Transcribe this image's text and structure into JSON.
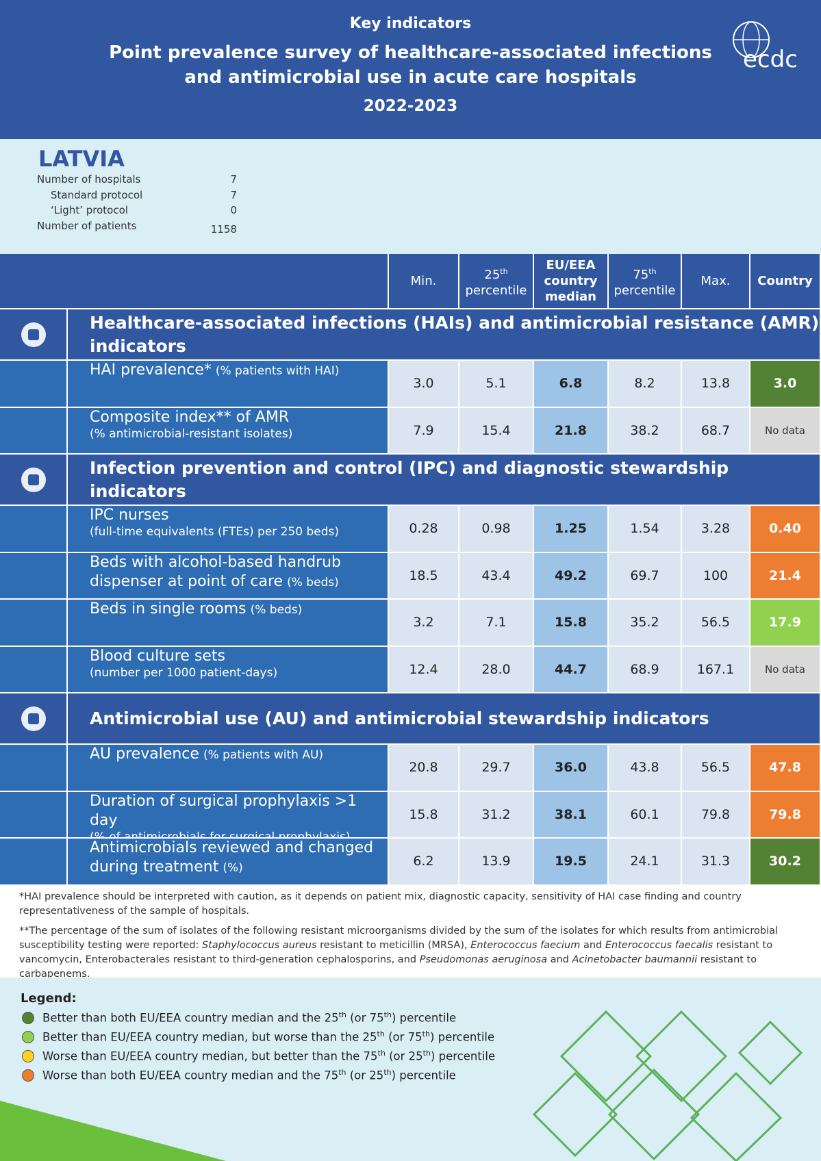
{
  "header": {
    "kicker": "Key indicators",
    "title": [
      "Point prevalence survey of healthcare-associated infections",
      "and antimicrobial use in acute care hospitals"
    ],
    "period": "2022-2023",
    "logo": "ecdc"
  },
  "country": "LATVIA",
  "summary": [
    {
      "label": "Number of hospitals",
      "value": "7"
    },
    {
      "label": "Standard protocol",
      "value": "7"
    },
    {
      "label": "‘Light’ protocol",
      "value": "0"
    },
    {
      "label": "Number of patients",
      "value": "1158"
    }
  ],
  "table": {
    "columns": [
      "Min.",
      [
        "25",
        "th",
        "percentile"
      ],
      "EU/EEA country median",
      [
        "75",
        "th",
        "percentile"
      ],
      "Max.",
      "Country"
    ],
    "sections": [
      {
        "title": "Healthcare-associated infections (HAIs) and antimicrobial resistance (AMR) indicators",
        "rows": [
          {
            "label": [
              {
                "text": "HAI prevalence*",
                "note": "(% patients with HAI)"
              }
            ],
            "values": [
              "3.0",
              "5.1",
              "6.8",
              "8.2",
              "13.8",
              "3.0"
            ],
            "color": "#548235"
          },
          {
            "label": [
              {
                "text": "Composite index** of AMR"
              },
              {
                "note": "(% antimicrobial-resistant isolates)"
              }
            ],
            "values": [
              "7.9",
              "15.4",
              "21.8",
              "38.2",
              "68.7",
              "No data"
            ],
            "color": "#d9d9d9"
          }
        ]
      },
      {
        "title": "Infection prevention and control (IPC) and diagnostic stewardship indicators",
        "rows": [
          {
            "label": [
              {
                "text": "IPC nurses"
              },
              {
                "note": "(full-time equivalents (FTEs) per 250 beds)"
              }
            ],
            "values": [
              "0.28",
              "0.98",
              "1.25",
              "1.54",
              "3.28",
              "0.40"
            ],
            "color": "#ed7d31"
          },
          {
            "label": [
              {
                "text": "Beds with alcohol-based handrub"
              },
              {
                "text": "dispenser at point of care",
                "note": "(% beds)"
              }
            ],
            "values": [
              "18.5",
              "43.4",
              "49.2",
              "69.7",
              "100",
              "21.4"
            ],
            "color": "#ed7d31"
          },
          {
            "label": [
              {
                "text": "Beds in single rooms",
                "note": "(% beds)"
              }
            ],
            "values": [
              "3.2",
              "7.1",
              "15.8",
              "35.2",
              "56.5",
              "17.9"
            ],
            "color": "#92d050"
          },
          {
            "label": [
              {
                "text": "Blood culture sets"
              },
              {
                "note": "(number per 1000 patient-days)"
              }
            ],
            "values": [
              "12.4",
              "28.0",
              "44.7",
              "68.9",
              "167.1",
              "No data"
            ],
            "color": "#d9d9d9"
          }
        ]
      },
      {
        "title": "Antimicrobial use (AU) and antimicrobial stewardship indicators",
        "rows": [
          {
            "label": [
              {
                "text": "AU prevalence",
                "note": "(% patients with AU)"
              }
            ],
            "values": [
              "20.8",
              "29.7",
              "36.0",
              "43.8",
              "56.5",
              "47.8"
            ],
            "color": "#ed7d31"
          },
          {
            "label": [
              {
                "text": "Duration of surgical prophylaxis >1 day"
              },
              {
                "note": "(% of antimicrobials for surgical prophylaxis)"
              }
            ],
            "values": [
              "15.8",
              "31.2",
              "38.1",
              "60.1",
              "79.8",
              "79.8"
            ],
            "color": "#ed7d31"
          },
          {
            "label": [
              {
                "text": "Antimicrobials reviewed and changed"
              },
              {
                "text": "during treatment",
                "note": "(%)"
              }
            ],
            "values": [
              "6.2",
              "13.9",
              "19.5",
              "24.1",
              "31.3",
              "30.2"
            ],
            "color": "#548235"
          }
        ]
      }
    ]
  },
  "footnotes": [
    [
      "*HAI prevalence should be interpreted with caution, as it depends on patient mix, diagnostic capacity, sensitivity of HAI case finding and country representativeness of the sample of hospitals."
    ],
    [
      "**The percentage of the sum of isolates of the following resistant microorganisms divided by the sum of the isolates for which results from antimicrobial susceptibility testing were reported: ",
      "Staphylococcus aureus",
      " resistant to meticillin (MRSA), ",
      "Enterococcus faecium",
      " and ",
      "Enterococcus faecalis",
      " resistant to vancomycin, Enterobacterales resistant to third-generation cephalosporins, and ",
      "Pseudomonas aeruginosa",
      " and ",
      "Acinetobacter baumannii",
      " resistant to carbapenems."
    ]
  ],
  "legend": {
    "title": "Legend:",
    "items": [
      {
        "color": "#548235",
        "parts": [
          "Better than both EU/EEA country median and the 25",
          "th",
          " (or 75",
          "th",
          ") percentile"
        ]
      },
      {
        "color": "#92d050",
        "parts": [
          "Better than EU/EEA country median, but worse than the 25",
          "th",
          " (or 75",
          "th",
          ") percentile"
        ]
      },
      {
        "color": "#ffd320",
        "parts": [
          "Worse than EU/EEA country median, but better than the 75",
          "th",
          " (or 25",
          "th",
          ") percentile"
        ]
      },
      {
        "color": "#ed7d31",
        "parts": [
          "Worse than both EU/EEA country median and the 75",
          "th",
          " (or 25",
          "th",
          ") percentile"
        ]
      }
    ]
  }
}
